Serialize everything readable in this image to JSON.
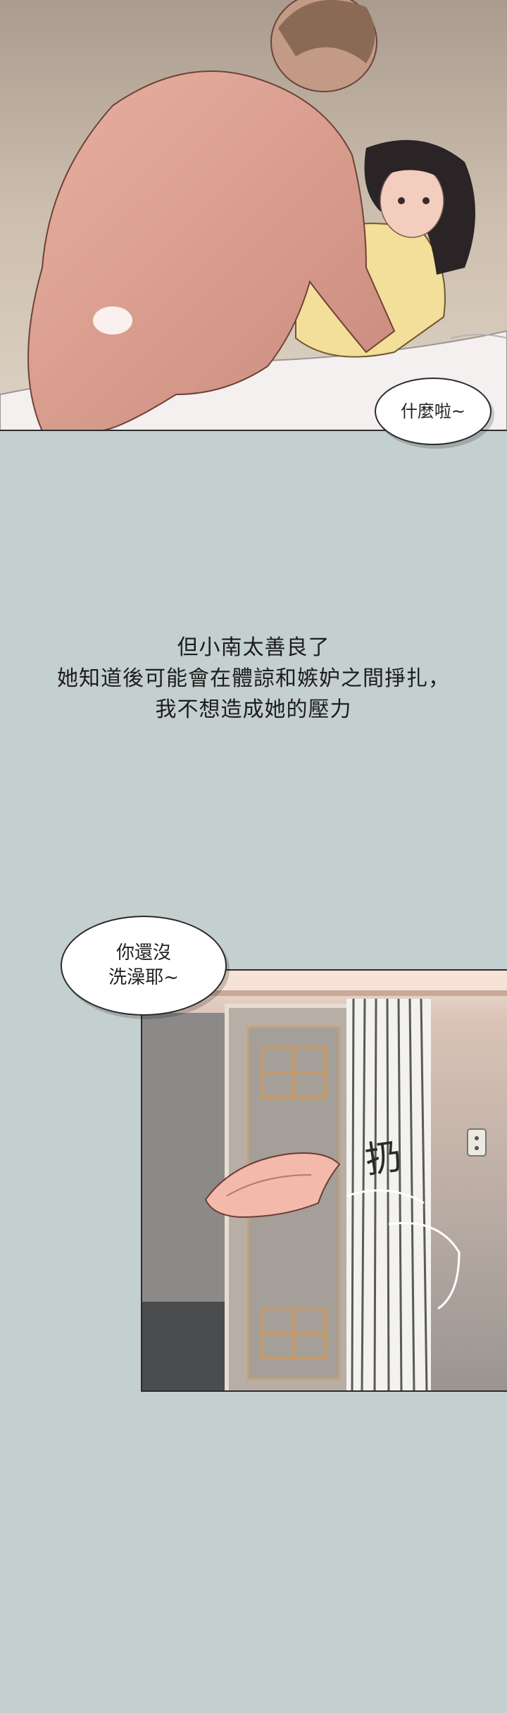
{
  "panel1": {
    "bubble": "什麼啦~"
  },
  "narration": {
    "lines": [
      "但小南太善良了",
      "她知道後可能會在體諒和嫉妒之間掙扎，",
      "我不想造成她的壓力"
    ]
  },
  "panel2": {
    "bubble_lines": [
      "你還沒",
      "洗澡耶~"
    ],
    "sfx": "扔"
  }
}
